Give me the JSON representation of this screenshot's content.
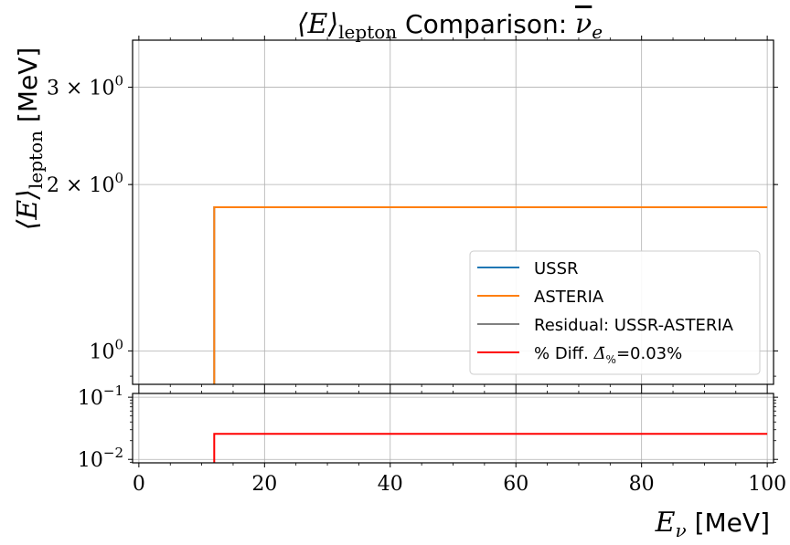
{
  "chart_data": [
    {
      "type": "line",
      "title_parts": [
        "⟨E⟩",
        "lepton",
        " Comparison: ",
        "ν",
        "e"
      ],
      "ylabel_parts": [
        "⟨E⟩",
        "lepton",
        " [MeV]"
      ],
      "yscale": "log",
      "xlim": [
        -1,
        101
      ],
      "ylim": [
        0.87,
        3.65
      ],
      "yticks": [
        {
          "value": 3,
          "label_base": "3 × 10",
          "label_exp": "0"
        },
        {
          "value": 2,
          "label_base": "2 × 10",
          "label_exp": "0"
        },
        {
          "value": 1,
          "label_base": "10",
          "label_exp": "0"
        }
      ],
      "xticks": [
        0,
        20,
        40,
        60,
        80,
        100
      ],
      "grid": true,
      "legend_position": "lower-right",
      "series": [
        {
          "name": "USSR",
          "color": "#1f77b4",
          "x": [
            12,
            12,
            100
          ],
          "y": [
            0.87,
            1.82,
            1.82
          ]
        },
        {
          "name": "ASTERIA",
          "color": "#ff7f0e",
          "x": [
            12,
            12,
            100
          ],
          "y": [
            0.87,
            1.82,
            1.82
          ]
        },
        {
          "name": "Residual: USSR-ASTERIA",
          "color": "#808080",
          "x": [],
          "y": []
        },
        {
          "name_parts": [
            "% Diff. ",
            "Δ̄",
            "%",
            "=0.03%"
          ],
          "color": "#ff0000",
          "x": [],
          "y": []
        }
      ]
    },
    {
      "type": "line",
      "yscale": "log",
      "xlim": [
        -1,
        101
      ],
      "ylim": [
        0.0088,
        0.115
      ],
      "yticks": [
        {
          "value": 0.1,
          "label_base": "10",
          "label_exp": "−1"
        },
        {
          "value": 0.01,
          "label_base": "10",
          "label_exp": "−2"
        }
      ],
      "xticks": [
        0,
        20,
        40,
        60,
        80,
        100
      ],
      "xlabel_parts": [
        "E",
        "ν",
        " [MeV]"
      ],
      "grid": true,
      "series": [
        {
          "name": "% Diff.",
          "color": "#ff0000",
          "x": [
            12,
            12,
            100
          ],
          "y": [
            0.0088,
            0.0257,
            0.0257
          ]
        }
      ]
    }
  ]
}
